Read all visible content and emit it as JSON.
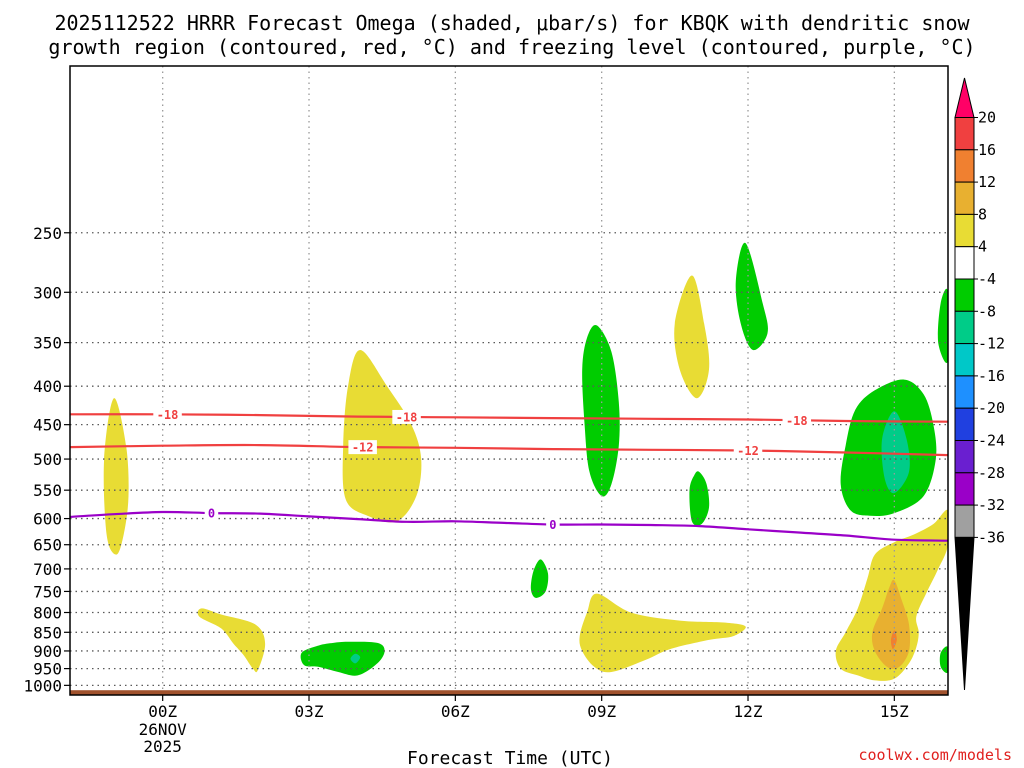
{
  "chart_data": {
    "type": "contour",
    "title_lines": [
      "2025112522 HRRR Forecast Omega (shaded, μbar/s) for KBQK with dendritic snow",
      "growth region (contoured, red, °C) and freezing level (contoured, purple, °C)"
    ],
    "xlabel": "Forecast Time (UTC)",
    "x_range_hours": [
      -1.9,
      16.1
    ],
    "x_ticks": [
      {
        "hour": 0,
        "label": "00Z",
        "sub": [
          "26NOV",
          "2025"
        ]
      },
      {
        "hour": 3,
        "label": "03Z",
        "sub": []
      },
      {
        "hour": 6,
        "label": "06Z",
        "sub": []
      },
      {
        "hour": 9,
        "label": "09Z",
        "sub": []
      },
      {
        "hour": 12,
        "label": "12Z",
        "sub": []
      },
      {
        "hour": 15,
        "label": "15Z",
        "sub": []
      }
    ],
    "y_range_hpa": [
      1030,
      150
    ],
    "y_ticks": [
      250,
      300,
      350,
      400,
      450,
      500,
      550,
      600,
      650,
      700,
      750,
      800,
      850,
      900,
      950,
      1000
    ],
    "surface_hpa": 1015,
    "colorbar": {
      "levels": [
        "20",
        "16",
        "12",
        "8",
        "4",
        "-4",
        "-8",
        "-12",
        "-16",
        "-20",
        "-24",
        "-28",
        "-32",
        "-36"
      ],
      "colors": [
        "#ff0066",
        "#f04040",
        "#f08030",
        "#e8b030",
        "#e8dc34",
        "#ffffff",
        "#00cc00",
        "#00cc88",
        "#00c8c8",
        "#1e90ff",
        "#2040e0",
        "#6a1fd0",
        "#9a00c8",
        "#a0a0a0",
        "#000000"
      ]
    },
    "omega_regions": [
      {
        "value": 6,
        "color": "#e8dc34",
        "pts": [
          [
            -1.0,
            415
          ],
          [
            -0.75,
            480
          ],
          [
            -0.7,
            560
          ],
          [
            -0.8,
            630
          ],
          [
            -0.95,
            670
          ],
          [
            -1.15,
            630
          ],
          [
            -1.2,
            500
          ]
        ]
      },
      {
        "value": 6,
        "color": "#e8dc34",
        "pts": [
          [
            4.05,
            358
          ],
          [
            4.6,
            400
          ],
          [
            5.1,
            450
          ],
          [
            5.3,
            500
          ],
          [
            5.2,
            560
          ],
          [
            4.8,
            605
          ],
          [
            4.2,
            595
          ],
          [
            3.75,
            565
          ],
          [
            3.7,
            480
          ],
          [
            3.8,
            400
          ]
        ]
      },
      {
        "value": 6,
        "color": "#e8dc34",
        "pts": [
          [
            0.8,
            790
          ],
          [
            1.2,
            805
          ],
          [
            1.9,
            830
          ],
          [
            2.1,
            880
          ],
          [
            1.95,
            955
          ],
          [
            1.85,
            950
          ],
          [
            1.65,
            910
          ],
          [
            1.45,
            880
          ],
          [
            1.2,
            840
          ],
          [
            0.75,
            810
          ]
        ]
      },
      {
        "value": 6,
        "color": "#e8dc34",
        "pts": [
          [
            10.85,
            285
          ],
          [
            11.1,
            330
          ],
          [
            11.2,
            380
          ],
          [
            10.95,
            415
          ],
          [
            10.6,
            380
          ],
          [
            10.5,
            330
          ]
        ]
      },
      {
        "value": 6,
        "color": "#e8dc34",
        "pts": [
          [
            8.9,
            755
          ],
          [
            9.6,
            800
          ],
          [
            10.6,
            820
          ],
          [
            11.5,
            825
          ],
          [
            11.95,
            835
          ],
          [
            11.7,
            860
          ],
          [
            11.2,
            870
          ],
          [
            10.4,
            895
          ],
          [
            9.9,
            925
          ],
          [
            9.2,
            960
          ],
          [
            8.85,
            945
          ],
          [
            8.6,
            900
          ],
          [
            8.55,
            860
          ],
          [
            8.7,
            800
          ]
        ]
      },
      {
        "value": 6,
        "color": "#e8dc34",
        "pts": [
          [
            14.6,
            670
          ],
          [
            15.0,
            645
          ],
          [
            15.4,
            630
          ],
          [
            15.8,
            610
          ],
          [
            16.1,
            585
          ],
          [
            16.1,
            650
          ],
          [
            15.9,
            700
          ],
          [
            15.65,
            755
          ],
          [
            15.45,
            810
          ],
          [
            15.5,
            850
          ],
          [
            15.45,
            890
          ],
          [
            15.3,
            935
          ],
          [
            15.0,
            980
          ],
          [
            14.6,
            985
          ],
          [
            14.25,
            970
          ],
          [
            13.9,
            950
          ],
          [
            13.8,
            900
          ],
          [
            14.0,
            850
          ],
          [
            14.25,
            790
          ],
          [
            14.45,
            720
          ]
        ]
      },
      {
        "value": 10,
        "color": "#e8b030",
        "pts": [
          [
            15.0,
            725
          ],
          [
            15.15,
            770
          ],
          [
            15.3,
            830
          ],
          [
            15.3,
            900
          ],
          [
            15.1,
            945
          ],
          [
            14.85,
            945
          ],
          [
            14.6,
            900
          ],
          [
            14.55,
            850
          ],
          [
            14.75,
            790
          ],
          [
            14.9,
            740
          ]
        ]
      },
      {
        "value": 14,
        "color": "#f08030",
        "pts": [
          [
            15.0,
            845
          ],
          [
            15.05,
            870
          ],
          [
            14.97,
            895
          ],
          [
            14.93,
            870
          ]
        ]
      },
      {
        "value": -6,
        "color": "#00cc00",
        "pts": [
          [
            8.9,
            332
          ],
          [
            9.2,
            360
          ],
          [
            9.35,
            420
          ],
          [
            9.35,
            480
          ],
          [
            9.2,
            540
          ],
          [
            9.0,
            560
          ],
          [
            8.75,
            520
          ],
          [
            8.65,
            450
          ],
          [
            8.6,
            380
          ],
          [
            8.7,
            345
          ]
        ]
      },
      {
        "value": -6,
        "color": "#00cc00",
        "pts": [
          [
            11.95,
            258
          ],
          [
            12.3,
            310
          ],
          [
            12.4,
            340
          ],
          [
            12.1,
            358
          ],
          [
            11.85,
            330
          ],
          [
            11.75,
            290
          ]
        ]
      },
      {
        "value": -6,
        "color": "#00cc00",
        "pts": [
          [
            16.1,
            300
          ],
          [
            15.95,
            310
          ],
          [
            15.9,
            350
          ],
          [
            16.1,
            370
          ]
        ]
      },
      {
        "value": -6,
        "color": "#00cc00",
        "pts": [
          [
            11.0,
            520
          ],
          [
            11.15,
            540
          ],
          [
            11.2,
            580
          ],
          [
            11.05,
            610
          ],
          [
            10.85,
            605
          ],
          [
            10.8,
            550
          ],
          [
            10.9,
            525
          ]
        ]
      },
      {
        "value": -6,
        "color": "#00cc00",
        "pts": [
          [
            7.75,
            680
          ],
          [
            7.9,
            710
          ],
          [
            7.85,
            750
          ],
          [
            7.65,
            765
          ],
          [
            7.55,
            745
          ],
          [
            7.6,
            705
          ]
        ]
      },
      {
        "value": -6,
        "color": "#00cc00",
        "pts": [
          [
            15.2,
            392
          ],
          [
            15.6,
            410
          ],
          [
            15.8,
            450
          ],
          [
            15.85,
            500
          ],
          [
            15.6,
            560
          ],
          [
            15.0,
            590
          ],
          [
            14.5,
            595
          ],
          [
            14.1,
            585
          ],
          [
            13.9,
            540
          ],
          [
            14.0,
            480
          ],
          [
            14.2,
            430
          ],
          [
            14.6,
            405
          ]
        ]
      },
      {
        "value": -10,
        "color": "#00cc88",
        "pts": [
          [
            15.0,
            432
          ],
          [
            15.25,
            470
          ],
          [
            15.3,
            520
          ],
          [
            15.0,
            555
          ],
          [
            14.8,
            530
          ],
          [
            14.75,
            470
          ]
        ]
      },
      {
        "value": -6,
        "color": "#00cc00",
        "pts": [
          [
            3.8,
            875
          ],
          [
            4.4,
            878
          ],
          [
            4.55,
            900
          ],
          [
            4.4,
            935
          ],
          [
            4.0,
            970
          ],
          [
            3.6,
            960
          ],
          [
            3.2,
            945
          ],
          [
            2.9,
            940
          ],
          [
            2.85,
            905
          ],
          [
            3.2,
            885
          ],
          [
            3.5,
            878
          ]
        ]
      },
      {
        "value": -10,
        "color": "#00cc88",
        "pts": [
          [
            3.95,
            908
          ],
          [
            4.05,
            918
          ],
          [
            3.95,
            935
          ],
          [
            3.85,
            922
          ]
        ]
      },
      {
        "value": -6,
        "color": "#00cc00",
        "pts": [
          [
            16.1,
            890
          ],
          [
            15.95,
            905
          ],
          [
            15.95,
            945
          ],
          [
            16.1,
            960
          ]
        ]
      }
    ],
    "temperature_contours": [
      {
        "value": -18,
        "label": "-18",
        "color": "#f04040",
        "pts": [
          [
            -1.9,
            436
          ],
          [
            0,
            436
          ],
          [
            2,
            437
          ],
          [
            4,
            439
          ],
          [
            6,
            440
          ],
          [
            8,
            441
          ],
          [
            10,
            442
          ],
          [
            12,
            443
          ],
          [
            14,
            445
          ],
          [
            16.1,
            446
          ]
        ],
        "label_hours": [
          0.1,
          5.0,
          13.0
        ]
      },
      {
        "value": -12,
        "label": "-12",
        "color": "#f04040",
        "pts": [
          [
            -1.9,
            482
          ],
          [
            0,
            480
          ],
          [
            2,
            479
          ],
          [
            4,
            482
          ],
          [
            6,
            483
          ],
          [
            8,
            485
          ],
          [
            10,
            486
          ],
          [
            12,
            487
          ],
          [
            14,
            490
          ],
          [
            16.1,
            494
          ]
        ],
        "label_hours": [
          4.1,
          12.0
        ]
      },
      {
        "value": 0,
        "label": "0",
        "color": "#9a00c8",
        "pts": [
          [
            -1.9,
            597
          ],
          [
            -1,
            592
          ],
          [
            0,
            588
          ],
          [
            1,
            590
          ],
          [
            2,
            591
          ],
          [
            3,
            596
          ],
          [
            4,
            601
          ],
          [
            5,
            606
          ],
          [
            6,
            605
          ],
          [
            7,
            608
          ],
          [
            8,
            611
          ],
          [
            9,
            611
          ],
          [
            10,
            612
          ],
          [
            11,
            614
          ],
          [
            12,
            620
          ],
          [
            13,
            626
          ],
          [
            14,
            632
          ],
          [
            15,
            640
          ],
          [
            16.1,
            642
          ]
        ],
        "label_hours": [
          1.0,
          8.0
        ]
      }
    ],
    "credit": "coolwx.com/models"
  }
}
